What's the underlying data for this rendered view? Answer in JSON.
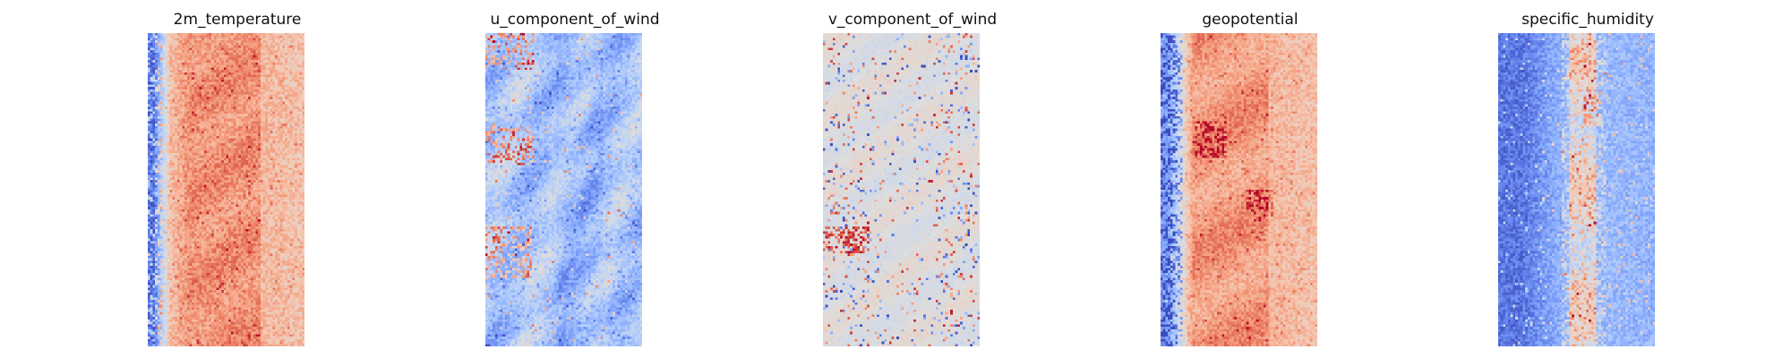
{
  "chart_data": [
    {
      "type": "heatmap",
      "title": "2m_temperature",
      "colormap": "coolwarm",
      "axes_visible": false,
      "grid": false,
      "grid_size": [
        64,
        128
      ],
      "pattern": "columns: dark blue on the far-left edge fading to pale blue, broad salmon-to-red band across the middle, pale salmon on the right; speckled noise throughout"
    },
    {
      "type": "heatmap",
      "title": "u_component_of_wind",
      "colormap": "coolwarm",
      "axes_visible": false,
      "grid": false,
      "grid_size": [
        64,
        128
      ],
      "pattern": "mostly light-to-medium blue with wavy darker blue streaks; scattered red/orange patches near the upper-left and lower-left"
    },
    {
      "type": "heatmap",
      "title": "v_component_of_wind",
      "colormap": "coolwarm",
      "axes_visible": false,
      "grid": false,
      "grid_size": [
        64,
        128
      ],
      "pattern": "mostly neutral light gray with scattered small red and blue eddies, denser on the left and right sides"
    },
    {
      "type": "heatmap",
      "title": "geopotential",
      "colormap": "coolwarm",
      "axes_visible": false,
      "grid": false,
      "grid_size": [
        64,
        128
      ],
      "pattern": "blue speckles on the far-left edge, salmon-red band with deeper red patches in the center, pale salmon on the right"
    },
    {
      "type": "heatmap",
      "title": "specific_humidity",
      "colormap": "coolwarm",
      "axes_visible": false,
      "grid": false,
      "grid_size": [
        64,
        128
      ],
      "pattern": "mostly blue with darker blue at the left, a light pink/salmon vertical band through the middle with a few red spots, medium blue on the right"
    }
  ]
}
